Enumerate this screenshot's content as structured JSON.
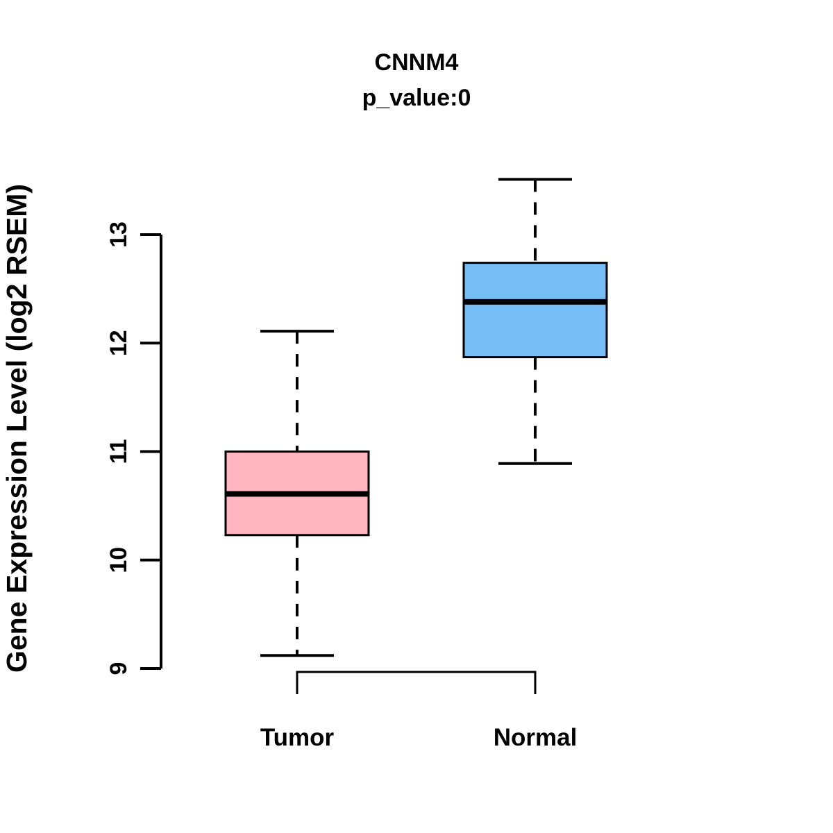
{
  "chart_data": {
    "type": "boxplot",
    "title": "CNNM4",
    "subtitle": "p_value:0",
    "ylabel": "Gene Expression Level (log2 RSEM)",
    "xlabel": "",
    "categories": [
      "Tumor",
      "Normal"
    ],
    "yticks": [
      9,
      10,
      11,
      12,
      13
    ],
    "ylim": [
      8.7,
      13.7
    ],
    "grid": false,
    "legend": "none",
    "axis_color": "#000000",
    "background": "#FFFFFF",
    "series": [
      {
        "name": "Tumor",
        "box_color": "#FFB6C1",
        "border_color": "#000000",
        "whisker_low": 9.12,
        "q1": 10.23,
        "median": 10.61,
        "q3": 11.0,
        "whisker_high": 12.11
      },
      {
        "name": "Normal",
        "box_color": "#77BDF5",
        "border_color": "#000000",
        "whisker_low": 10.89,
        "q1": 11.87,
        "median": 12.38,
        "q3": 12.74,
        "whisker_high": 13.51
      }
    ]
  }
}
